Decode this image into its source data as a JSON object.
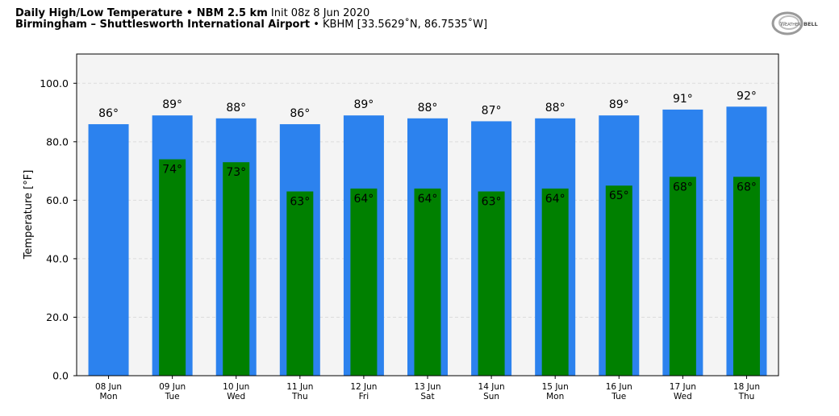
{
  "header": {
    "title_bold": "Daily High/Low Temperature • NBM 2.5 km",
    "title_init": "Init 08z 8 Jun 2020",
    "location_bold": "Birmingham – Shuttlesworth International Airport",
    "location_code": "• KBHM [33.5629˚N, 86.7535˚W]",
    "logo_text": "WeatherBELL"
  },
  "colors": {
    "high": "#2c82ee",
    "low": "#008000",
    "plot_bg": "#f4f4f4",
    "grid": "#dcdcdc"
  },
  "chart_data": {
    "type": "bar",
    "categories": [
      [
        "08 Jun",
        "Mon"
      ],
      [
        "09 Jun",
        "Tue"
      ],
      [
        "10 Jun",
        "Wed"
      ],
      [
        "11 Jun",
        "Thu"
      ],
      [
        "12 Jun",
        "Fri"
      ],
      [
        "13 Jun",
        "Sat"
      ],
      [
        "14 Jun",
        "Sun"
      ],
      [
        "15 Jun",
        "Mon"
      ],
      [
        "16 Jun",
        "Tue"
      ],
      [
        "17 Jun",
        "Wed"
      ],
      [
        "18 Jun",
        "Thu"
      ]
    ],
    "series": [
      {
        "values": [
          86,
          89,
          88,
          86,
          89,
          88,
          87,
          88,
          89,
          91,
          92
        ],
        "labels": [
          "86°",
          "89°",
          "88°",
          "86°",
          "89°",
          "88°",
          "87°",
          "88°",
          "89°",
          "91°",
          "92°"
        ]
      },
      {
        "values": [
          null,
          74,
          73,
          63,
          64,
          64,
          63,
          64,
          65,
          68,
          68
        ],
        "labels": [
          "",
          "74°",
          "73°",
          "63°",
          "64°",
          "64°",
          "63°",
          "64°",
          "65°",
          "68°",
          "68°"
        ]
      }
    ],
    "ylabel": "Temperature [°F]",
    "yticks": [
      "0.0",
      "20.0",
      "40.0",
      "60.0",
      "80.0",
      "100.0"
    ],
    "ytick_values": [
      0,
      20,
      40,
      60,
      80,
      100
    ],
    "ylim": [
      0,
      110
    ],
    "grid": true
  }
}
